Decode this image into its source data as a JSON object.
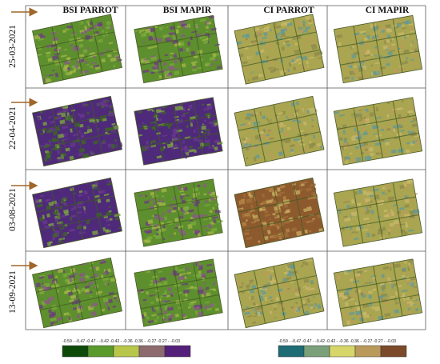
{
  "columns": [
    "BSI PARROT",
    "BSI MAPIR",
    "CI PARROT",
    "CI MAPIR"
  ],
  "rows": [
    "25-03-2021",
    "22-04-2021",
    "03-08-2021",
    "13-09-2021"
  ],
  "legend_left": {
    "labels": "-0.59 - -0.47  -0.47 - -0.42  -0.42 - -0.36  -0.36 - -0.27  -0.27 - -0.03",
    "colors": [
      "#0d4a0a",
      "#5a9a2c",
      "#b8c64a",
      "#8c6a6e",
      "#55207a"
    ]
  },
  "legend_right": {
    "labels": "-0.59 - -0.47  -0.47 - -0.42  -0.42 - -0.36  -0.36 - -0.27  -0.27 - -0.03",
    "colors": [
      "#1d6b74",
      "#7aa07a",
      "#d6d66a",
      "#b99a5a",
      "#7b4a2a"
    ]
  },
  "palettes": {
    "bsi": [
      "#5e8f2e",
      "#7cab3c",
      "#a6b84a",
      "#6d3a82",
      "#8a5a88"
    ],
    "ci": [
      "#a9a551",
      "#b99e5a",
      "#c9b96a",
      "#8e8a4a",
      "#5f9a9a"
    ],
    "ci_brown": [
      "#8d5a2e",
      "#a0703a",
      "#b98a4a",
      "#c9b063"
    ],
    "bsi_dark": [
      "#4f2a7a",
      "#6a3a8e",
      "#3c6a22",
      "#7cab3c"
    ]
  }
}
